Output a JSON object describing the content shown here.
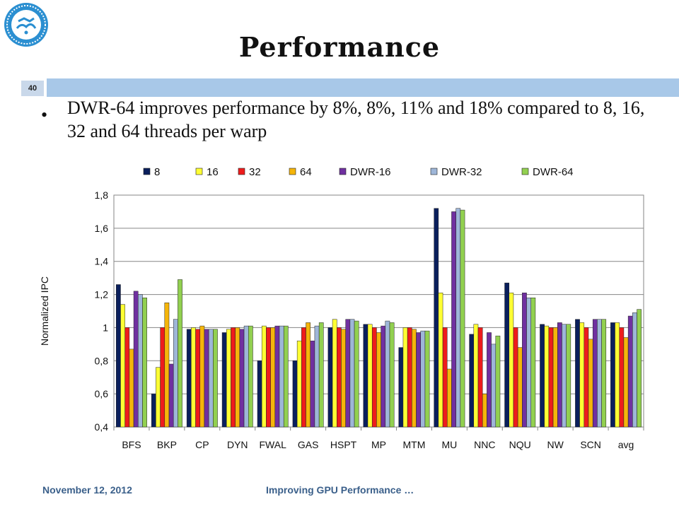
{
  "slide": {
    "title": "Performance",
    "slide_number": "40",
    "bullet": "DWR-64 improves performance by 8%, 8%, 11% and 18% compared to 8, 16, 32 and 64 threads per warp",
    "footer_date": "November 12, 2012",
    "footer_title": "Improving GPU Performance …"
  },
  "chart_data": {
    "type": "bar",
    "title": "",
    "xlabel": "",
    "ylabel": "Normalized IPC",
    "ylim": [
      0.4,
      1.8
    ],
    "yticks": [
      "0,4",
      "0,6",
      "0,8",
      "1",
      "1,2",
      "1,4",
      "1,6",
      "1,8"
    ],
    "ytick_values": [
      0.4,
      0.6,
      0.8,
      1.0,
      1.2,
      1.4,
      1.6,
      1.8
    ],
    "grid": true,
    "legend_position": "top",
    "categories": [
      "BFS",
      "BKP",
      "CP",
      "DYN",
      "FWAL",
      "GAS",
      "HSPT",
      "MP",
      "MTM",
      "MU",
      "NNC",
      "NQU",
      "NW",
      "SCN",
      "avg"
    ],
    "series": [
      {
        "name": "8",
        "color": "#0a1f5c",
        "values": [
          1.26,
          0.6,
          0.99,
          0.97,
          0.8,
          0.8,
          1.0,
          1.02,
          0.88,
          1.72,
          0.96,
          1.27,
          1.02,
          1.05,
          1.03
        ]
      },
      {
        "name": "16",
        "color": "#ffff33",
        "values": [
          1.14,
          0.76,
          1.0,
          0.99,
          1.01,
          0.92,
          1.05,
          1.02,
          1.0,
          1.21,
          1.02,
          1.21,
          1.01,
          1.03,
          1.03
        ]
      },
      {
        "name": "32",
        "color": "#ee1c1c",
        "values": [
          1.0,
          1.0,
          0.99,
          1.0,
          1.0,
          1.0,
          1.0,
          1.0,
          1.0,
          1.0,
          1.0,
          1.0,
          1.0,
          1.0,
          1.0
        ]
      },
      {
        "name": "64",
        "color": "#f5b50a",
        "values": [
          0.87,
          1.15,
          1.01,
          1.0,
          1.0,
          1.03,
          0.99,
          0.97,
          0.99,
          0.75,
          0.6,
          0.88,
          1.0,
          0.93,
          0.94
        ]
      },
      {
        "name": "DWR-16",
        "color": "#7030a0",
        "values": [
          1.22,
          0.78,
          0.99,
          0.99,
          1.01,
          0.92,
          1.05,
          1.01,
          0.97,
          1.7,
          0.97,
          1.21,
          1.03,
          1.05,
          1.07
        ]
      },
      {
        "name": "DWR-32",
        "color": "#9eb6d8",
        "values": [
          1.2,
          1.05,
          0.99,
          1.01,
          1.01,
          1.01,
          1.05,
          1.04,
          0.98,
          1.72,
          0.9,
          1.18,
          1.02,
          1.05,
          1.09
        ]
      },
      {
        "name": "DWR-64",
        "color": "#92d050",
        "values": [
          1.18,
          1.29,
          0.99,
          1.01,
          1.01,
          1.03,
          1.04,
          1.03,
          0.98,
          1.71,
          0.95,
          1.18,
          1.02,
          1.05,
          1.11
        ]
      }
    ]
  }
}
